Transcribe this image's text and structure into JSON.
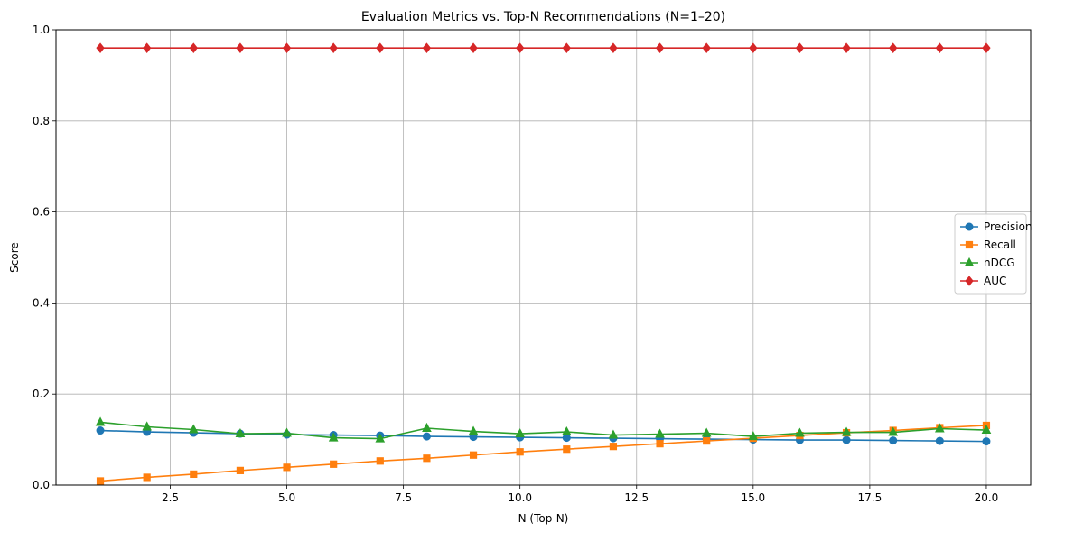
{
  "chart_data": {
    "type": "line",
    "title": "Evaluation Metrics vs. Top-N Recommendations (N=1–20)",
    "xlabel": "N (Top-N)",
    "ylabel": "Score",
    "x": [
      1,
      2,
      3,
      4,
      5,
      6,
      7,
      8,
      9,
      10,
      11,
      12,
      13,
      14,
      15,
      16,
      17,
      18,
      19,
      20
    ],
    "xlim": [
      0.05,
      20.95
    ],
    "ylim": [
      0,
      1
    ],
    "xticks": [
      2.5,
      5.0,
      7.5,
      10.0,
      12.5,
      15.0,
      17.5,
      20.0
    ],
    "xtick_labels": [
      "2.5",
      "5.0",
      "7.5",
      "10.0",
      "12.5",
      "15.0",
      "17.5",
      "20.0"
    ],
    "yticks": [
      0.0,
      0.2,
      0.4,
      0.6,
      0.8,
      1.0
    ],
    "ytick_labels": [
      "0.0",
      "0.2",
      "0.4",
      "0.6",
      "0.8",
      "1.0"
    ],
    "grid": true,
    "legend_position": "center-right",
    "series": [
      {
        "name": "Precision",
        "color": "#1f77b4",
        "marker": "circle",
        "values": [
          0.12,
          0.117,
          0.115,
          0.113,
          0.111,
          0.11,
          0.109,
          0.107,
          0.106,
          0.105,
          0.104,
          0.103,
          0.102,
          0.101,
          0.1,
          0.099,
          0.099,
          0.098,
          0.097,
          0.096
        ]
      },
      {
        "name": "Recall",
        "color": "#ff7f0e",
        "marker": "square",
        "values": [
          0.009,
          0.017,
          0.024,
          0.032,
          0.039,
          0.046,
          0.053,
          0.059,
          0.066,
          0.073,
          0.079,
          0.085,
          0.091,
          0.097,
          0.103,
          0.109,
          0.115,
          0.12,
          0.126,
          0.131
        ]
      },
      {
        "name": "nDCG",
        "color": "#2ca02c",
        "marker": "triangle",
        "values": [
          0.138,
          0.128,
          0.122,
          0.113,
          0.114,
          0.104,
          0.102,
          0.125,
          0.118,
          0.113,
          0.117,
          0.11,
          0.112,
          0.114,
          0.107,
          0.114,
          0.116,
          0.116,
          0.124,
          0.121
        ]
      },
      {
        "name": "AUC",
        "color": "#d62728",
        "marker": "diamond",
        "values": [
          0.96,
          0.96,
          0.96,
          0.96,
          0.96,
          0.96,
          0.96,
          0.96,
          0.96,
          0.96,
          0.96,
          0.96,
          0.96,
          0.96,
          0.96,
          0.96,
          0.96,
          0.96,
          0.96,
          0.96
        ]
      }
    ]
  }
}
